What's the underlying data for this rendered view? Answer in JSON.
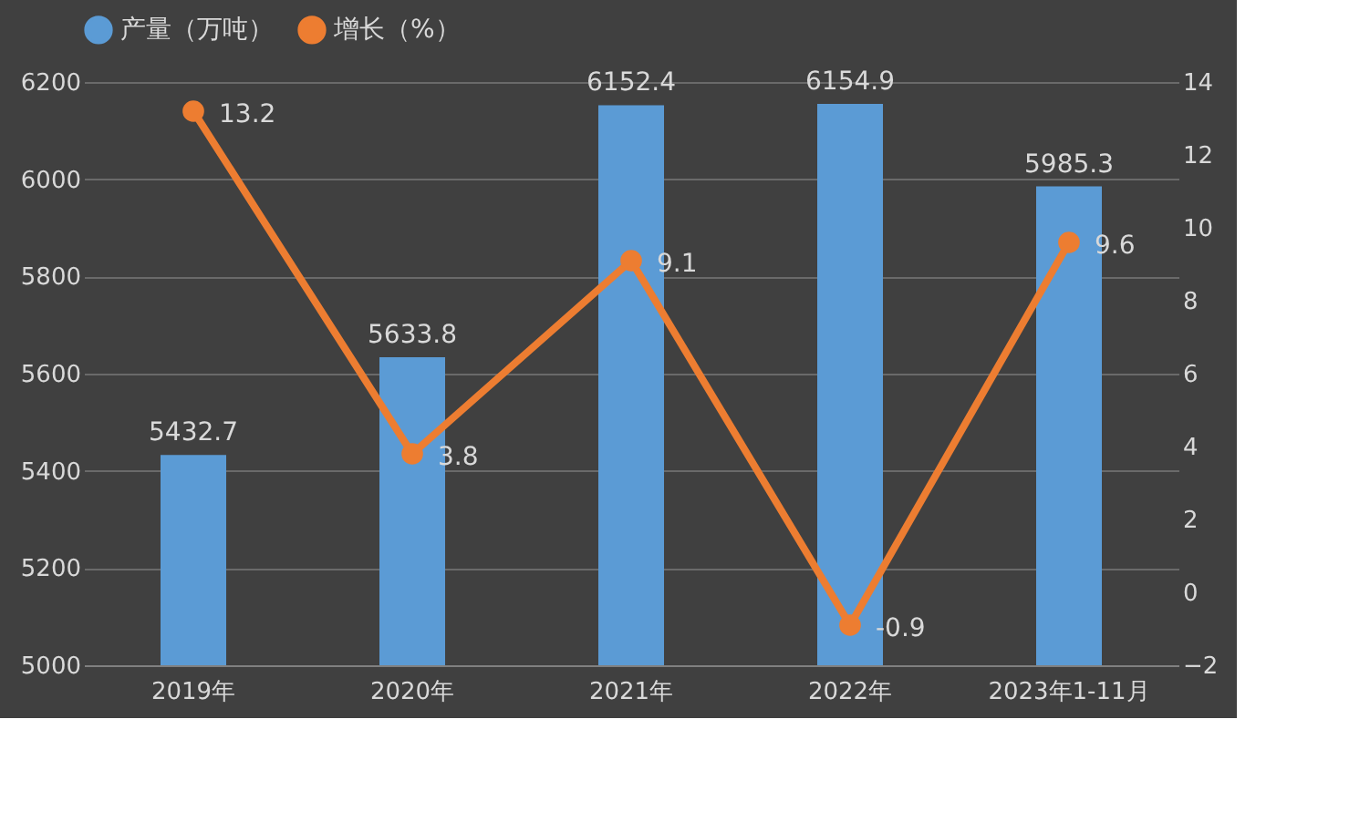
{
  "chart_data": {
    "type": "bar",
    "categories": [
      "2019年",
      "2020年",
      "2021年",
      "2022年",
      "2023年1-11月"
    ],
    "series": [
      {
        "name": "产量（万吨）",
        "color": "#5b9bd5",
        "values": [
          5432.7,
          5633.8,
          6152.4,
          6154.9,
          5985.3
        ]
      },
      {
        "name": "增长（%）",
        "type": "line",
        "axis": "y2",
        "color": "#ed7d31",
        "marker": "circle",
        "values": [
          13.2,
          3.8,
          9.1,
          -0.9,
          9.6
        ]
      }
    ],
    "ylim": [
      5000,
      6200
    ],
    "yticks": [
      5000,
      5200,
      5400,
      5600,
      5800,
      6000,
      6200
    ],
    "y2lim": [
      -2,
      14
    ],
    "y2ticks": [
      -2,
      0,
      2,
      4,
      6,
      8,
      10,
      12,
      14
    ],
    "grid": "y",
    "legend": "top",
    "data_labels": true
  }
}
